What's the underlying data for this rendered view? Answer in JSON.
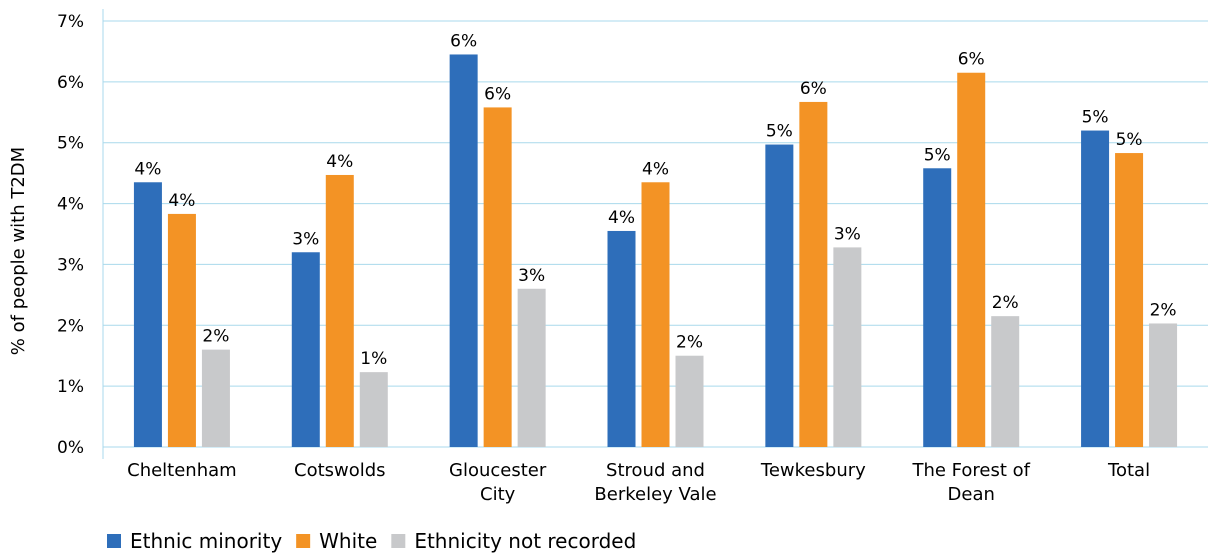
{
  "chart_data": {
    "type": "bar",
    "title": "",
    "xlabel": "",
    "ylabel": "% of people with T2DM",
    "ylim": [
      0,
      7
    ],
    "yticks": [
      "0%",
      "1%",
      "2%",
      "3%",
      "4%",
      "5%",
      "6%",
      "7%"
    ],
    "grid": true,
    "legend_position": "bottom-left",
    "categories": [
      [
        "Cheltenham"
      ],
      [
        "Cotswolds"
      ],
      [
        "Gloucester",
        "City"
      ],
      [
        "Stroud and",
        "Berkeley Vale"
      ],
      [
        "Tewkesbury"
      ],
      [
        "The Forest of",
        "Dean"
      ],
      [
        "Total"
      ]
    ],
    "series": [
      {
        "name": "Ethnic minority",
        "color": "#2e6eba",
        "values": [
          4.35,
          3.2,
          6.45,
          3.55,
          4.97,
          4.58,
          5.2
        ],
        "labels": [
          "4%",
          "3%",
          "6%",
          "4%",
          "5%",
          "5%",
          "5%"
        ]
      },
      {
        "name": "White",
        "color": "#f39325",
        "values": [
          3.83,
          4.47,
          5.58,
          4.35,
          5.67,
          6.15,
          4.83
        ],
        "labels": [
          "4%",
          "4%",
          "6%",
          "4%",
          "6%",
          "6%",
          "5%"
        ]
      },
      {
        "name": "Ethnicity not recorded",
        "color": "#c8c9cb",
        "values": [
          1.6,
          1.23,
          2.6,
          1.5,
          3.28,
          2.15,
          2.03
        ],
        "labels": [
          "2%",
          "1%",
          "3%",
          "2%",
          "3%",
          "2%",
          "2%"
        ]
      }
    ]
  }
}
